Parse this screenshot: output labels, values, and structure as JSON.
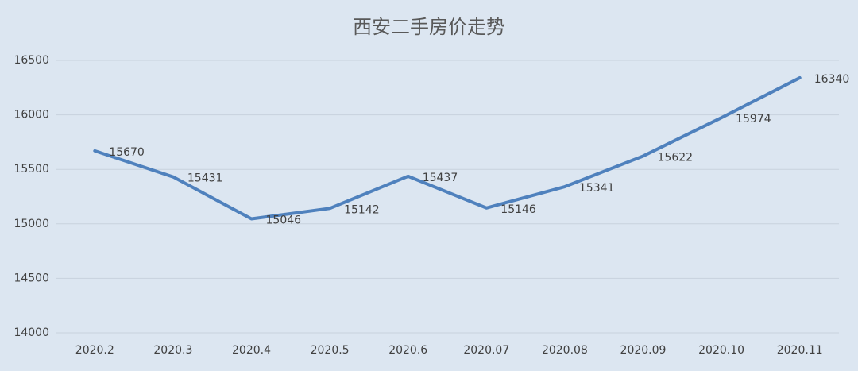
{
  "chart_data": {
    "type": "line",
    "title": "西安二手房价走势",
    "categories": [
      "2020.2",
      "2020.3",
      "2020.4",
      "2020.5",
      "2020.6",
      "2020.07",
      "2020.08",
      "2020.09",
      "2020.10",
      "2020.11"
    ],
    "values": [
      15670,
      15431,
      15046,
      15142,
      15437,
      15146,
      15341,
      15622,
      15974,
      16340
    ],
    "color": "#4f81bd",
    "ylim": [
      14000,
      16500
    ],
    "yticks": [
      14000,
      14500,
      15000,
      15500,
      16000,
      16500
    ],
    "grid": true
  }
}
